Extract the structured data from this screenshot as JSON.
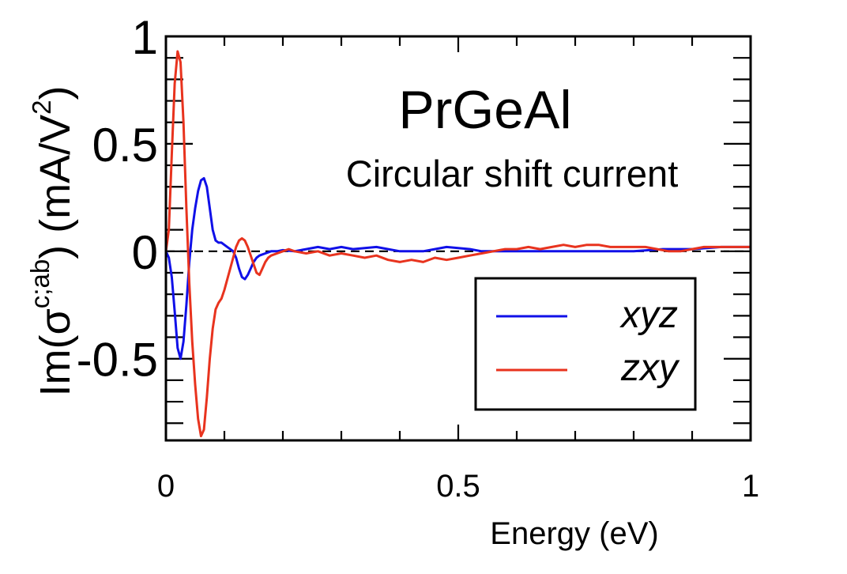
{
  "chart_data": {
    "type": "line",
    "title": "PrGeAl",
    "subtitle": "Circular shift current",
    "xlabel": "Energy (eV)",
    "ylabel_parts": {
      "prefix": "Im(σ",
      "superscript": "c;ab",
      "suffix": ") (mA/V",
      "unit_exponent": "2",
      "close": ")"
    },
    "xlim": [
      0,
      1
    ],
    "ylim": [
      -0.88,
      1.0
    ],
    "x_ticks": [
      0,
      0.5,
      1
    ],
    "x_tick_labels": [
      "0",
      "0.5",
      "1"
    ],
    "y_ticks": [
      1,
      0.5,
      0,
      -0.5
    ],
    "y_tick_labels": [
      "1",
      "0.5",
      "0",
      "-0.5"
    ],
    "zero_line": "dashed",
    "grid": false,
    "legend_position": "bottom-right",
    "series": [
      {
        "name": "xyz",
        "color": "#1010e8",
        "x": [
          0,
          0.005,
          0.01,
          0.015,
          0.02,
          0.025,
          0.03,
          0.035,
          0.04,
          0.045,
          0.05,
          0.055,
          0.06,
          0.065,
          0.07,
          0.075,
          0.08,
          0.085,
          0.09,
          0.095,
          0.1,
          0.105,
          0.11,
          0.115,
          0.12,
          0.125,
          0.13,
          0.135,
          0.14,
          0.145,
          0.15,
          0.155,
          0.16,
          0.17,
          0.18,
          0.19,
          0.2,
          0.22,
          0.24,
          0.26,
          0.28,
          0.3,
          0.32,
          0.34,
          0.36,
          0.38,
          0.4,
          0.42,
          0.44,
          0.46,
          0.48,
          0.5,
          0.52,
          0.54,
          0.56,
          0.58,
          0.6,
          0.65,
          0.7,
          0.75,
          0.8,
          0.85,
          0.9,
          0.95,
          1.0
        ],
        "y": [
          0,
          -0.03,
          -0.12,
          -0.28,
          -0.45,
          -0.5,
          -0.42,
          -0.25,
          -0.05,
          0.1,
          0.2,
          0.28,
          0.33,
          0.34,
          0.3,
          0.2,
          0.1,
          0.05,
          0.04,
          0.04,
          0.03,
          0.02,
          0.01,
          0.0,
          -0.03,
          -0.08,
          -0.12,
          -0.13,
          -0.11,
          -0.08,
          -0.05,
          -0.03,
          -0.02,
          -0.01,
          0.0,
          0.0,
          0.005,
          0.0,
          0.01,
          0.02,
          0.01,
          0.02,
          0.01,
          0.015,
          0.02,
          0.01,
          0.0,
          0.0,
          0.0,
          0.01,
          0.02,
          0.015,
          0.01,
          0.0,
          0.0,
          0.0,
          0.0,
          0.0,
          0.0,
          0.0,
          0.0,
          0.01,
          0.01,
          0.02,
          0.02
        ]
      },
      {
        "name": "zxy",
        "color": "#e8331e",
        "x": [
          0,
          0.005,
          0.01,
          0.015,
          0.02,
          0.025,
          0.03,
          0.035,
          0.04,
          0.045,
          0.05,
          0.055,
          0.06,
          0.065,
          0.07,
          0.075,
          0.08,
          0.085,
          0.09,
          0.095,
          0.1,
          0.105,
          0.11,
          0.115,
          0.12,
          0.125,
          0.13,
          0.135,
          0.14,
          0.145,
          0.15,
          0.155,
          0.16,
          0.165,
          0.17,
          0.175,
          0.18,
          0.19,
          0.2,
          0.21,
          0.22,
          0.24,
          0.26,
          0.28,
          0.3,
          0.32,
          0.34,
          0.36,
          0.38,
          0.4,
          0.42,
          0.44,
          0.46,
          0.48,
          0.5,
          0.52,
          0.54,
          0.56,
          0.58,
          0.6,
          0.62,
          0.64,
          0.66,
          0.68,
          0.7,
          0.72,
          0.74,
          0.76,
          0.78,
          0.8,
          0.82,
          0.84,
          0.86,
          0.88,
          0.9,
          0.92,
          0.94,
          0.96,
          0.98,
          1.0
        ],
        "y": [
          0,
          0.1,
          0.45,
          0.78,
          0.93,
          0.88,
          0.6,
          0.2,
          -0.15,
          -0.42,
          -0.62,
          -0.78,
          -0.86,
          -0.83,
          -0.68,
          -0.5,
          -0.36,
          -0.27,
          -0.24,
          -0.22,
          -0.18,
          -0.13,
          -0.08,
          -0.03,
          0.02,
          0.05,
          0.06,
          0.05,
          0.02,
          -0.02,
          -0.06,
          -0.1,
          -0.11,
          -0.08,
          -0.05,
          -0.03,
          -0.02,
          -0.01,
          0.0,
          0.01,
          0.0,
          -0.01,
          0.0,
          -0.02,
          -0.01,
          -0.02,
          -0.03,
          -0.02,
          -0.04,
          -0.05,
          -0.04,
          -0.05,
          -0.03,
          -0.04,
          -0.03,
          -0.02,
          -0.01,
          0.0,
          0.01,
          0.01,
          0.02,
          0.01,
          0.02,
          0.03,
          0.02,
          0.03,
          0.03,
          0.02,
          0.02,
          0.02,
          0.02,
          0.01,
          0.0,
          0.0,
          0.01,
          0.02,
          0.02,
          0.02,
          0.02,
          0.02
        ]
      }
    ]
  }
}
